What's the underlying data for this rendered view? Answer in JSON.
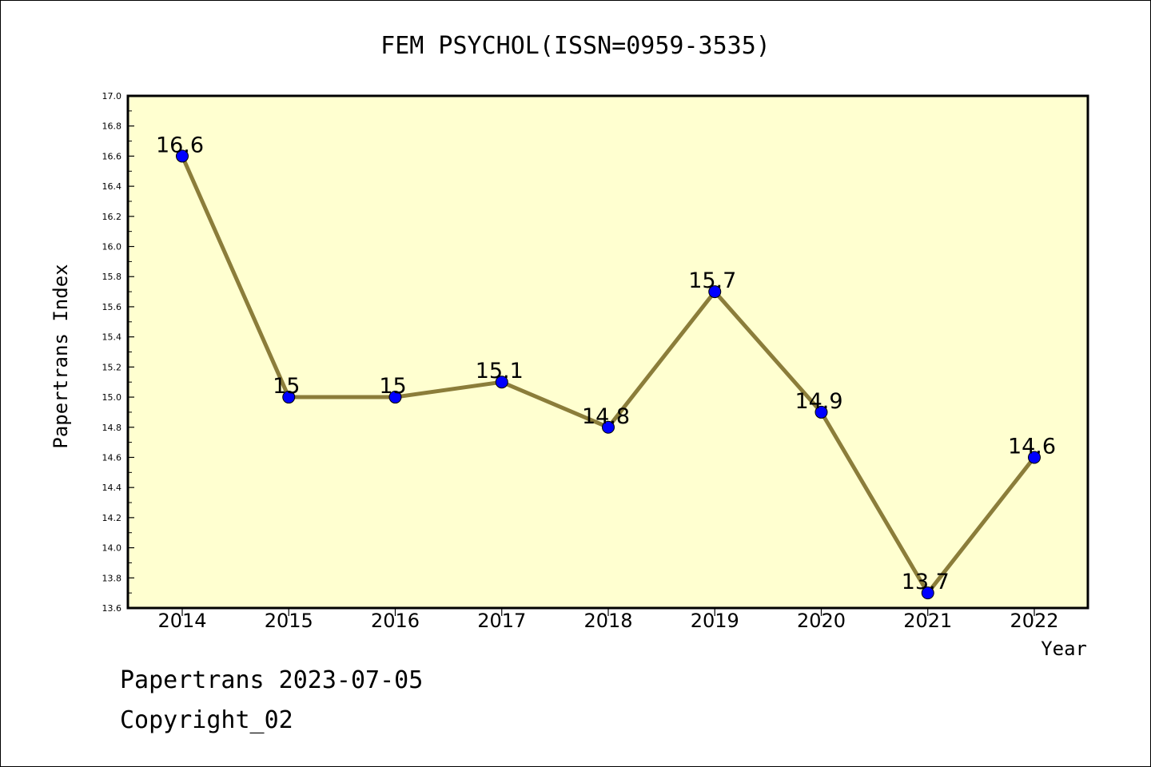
{
  "chart_data": {
    "type": "line",
    "title": "FEM PSYCHOL(ISSN=0959-3535)",
    "xlabel": "Year",
    "ylabel": "Papertrans Index",
    "x": [
      "2014",
      "2015",
      "2016",
      "2017",
      "2018",
      "2019",
      "2020",
      "2021",
      "2022"
    ],
    "series": [
      {
        "values": [
          16.6,
          15.0,
          15.0,
          15.1,
          14.8,
          15.7,
          14.9,
          13.7,
          14.6
        ],
        "labels": [
          "16.6",
          "15",
          "15",
          "15.1",
          "14.8",
          "15.7",
          "14.9",
          "13.7",
          "14.6"
        ]
      }
    ],
    "ylim": [
      13.6,
      17.0
    ],
    "yticks": [
      "13.6",
      "13.8",
      "14.0",
      "14.2",
      "14.4",
      "14.6",
      "14.8",
      "15.0",
      "15.2",
      "15.4",
      "15.6",
      "15.8",
      "16.0",
      "16.2",
      "16.4",
      "16.6",
      "16.8",
      "17.0"
    ],
    "grid": false,
    "legend": "none",
    "colors": {
      "plot_background": "#ffffd0",
      "line": "#8b7d3a",
      "marker": "#0000ff"
    }
  },
  "footer": {
    "line1": "Papertrans 2023-07-05",
    "line2": "Copyright_02"
  }
}
